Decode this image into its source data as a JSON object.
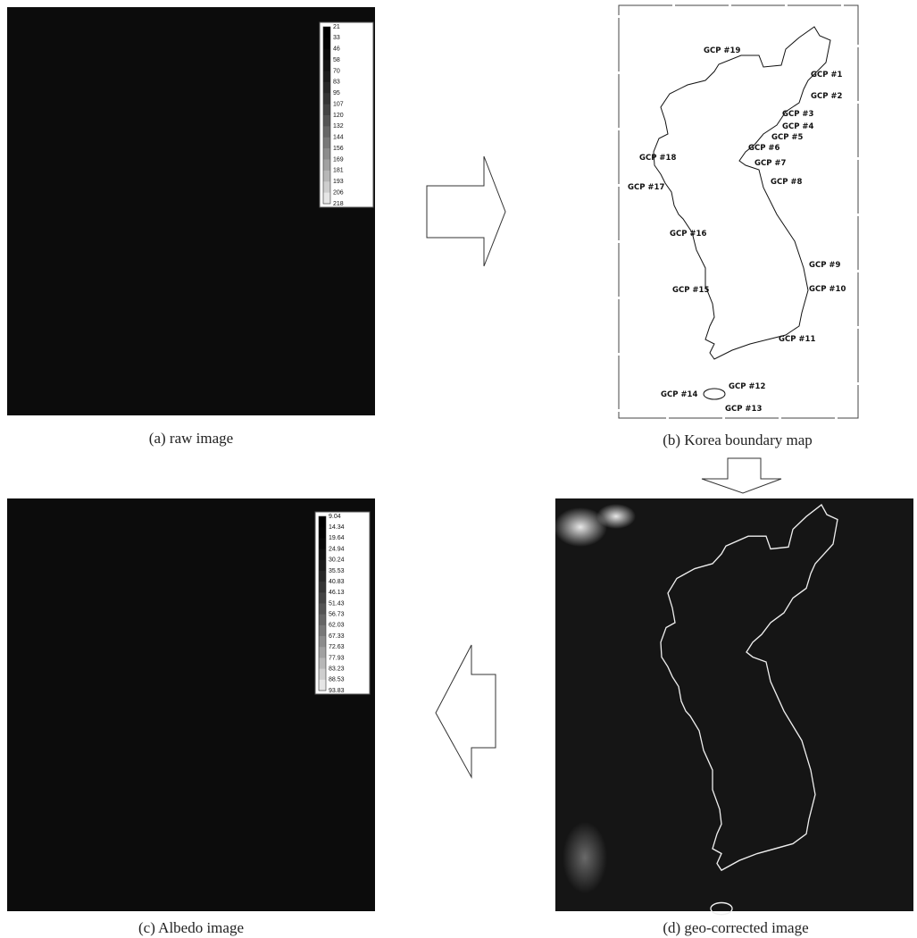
{
  "panels": [
    {
      "caption": "(a) raw image",
      "colorbar": [
        "21",
        "33",
        "46",
        "58",
        "70",
        "83",
        "95",
        "107",
        "120",
        "132",
        "144",
        "156",
        "169",
        "181",
        "193",
        "206",
        "218"
      ]
    },
    {
      "caption": "(b) Korea boundary map",
      "labels": [
        "GCP #19",
        "GCP #1",
        "GCP #2",
        "GCP #3",
        "GCP #4",
        "GCP #5",
        "GCP #6",
        "GCP #7",
        "GCP #8",
        "GCP #9",
        "GCP #10",
        "GCP #11",
        "GCP #12",
        "GCP #13",
        "GCP #14",
        "GCP #15",
        "GCP #16",
        "GCP #17",
        "GCP #18"
      ]
    },
    {
      "caption": "(c) Albedo image",
      "colorbar": [
        "9.04",
        "14.34",
        "19.64",
        "24.94",
        "30.24",
        "35.53",
        "40.83",
        "46.13",
        "51.43",
        "56.73",
        "62.03",
        "67.33",
        "72.63",
        "77.93",
        "83.23",
        "88.53",
        "93.83"
      ]
    },
    {
      "caption": "(d) geo-corrected image"
    }
  ]
}
